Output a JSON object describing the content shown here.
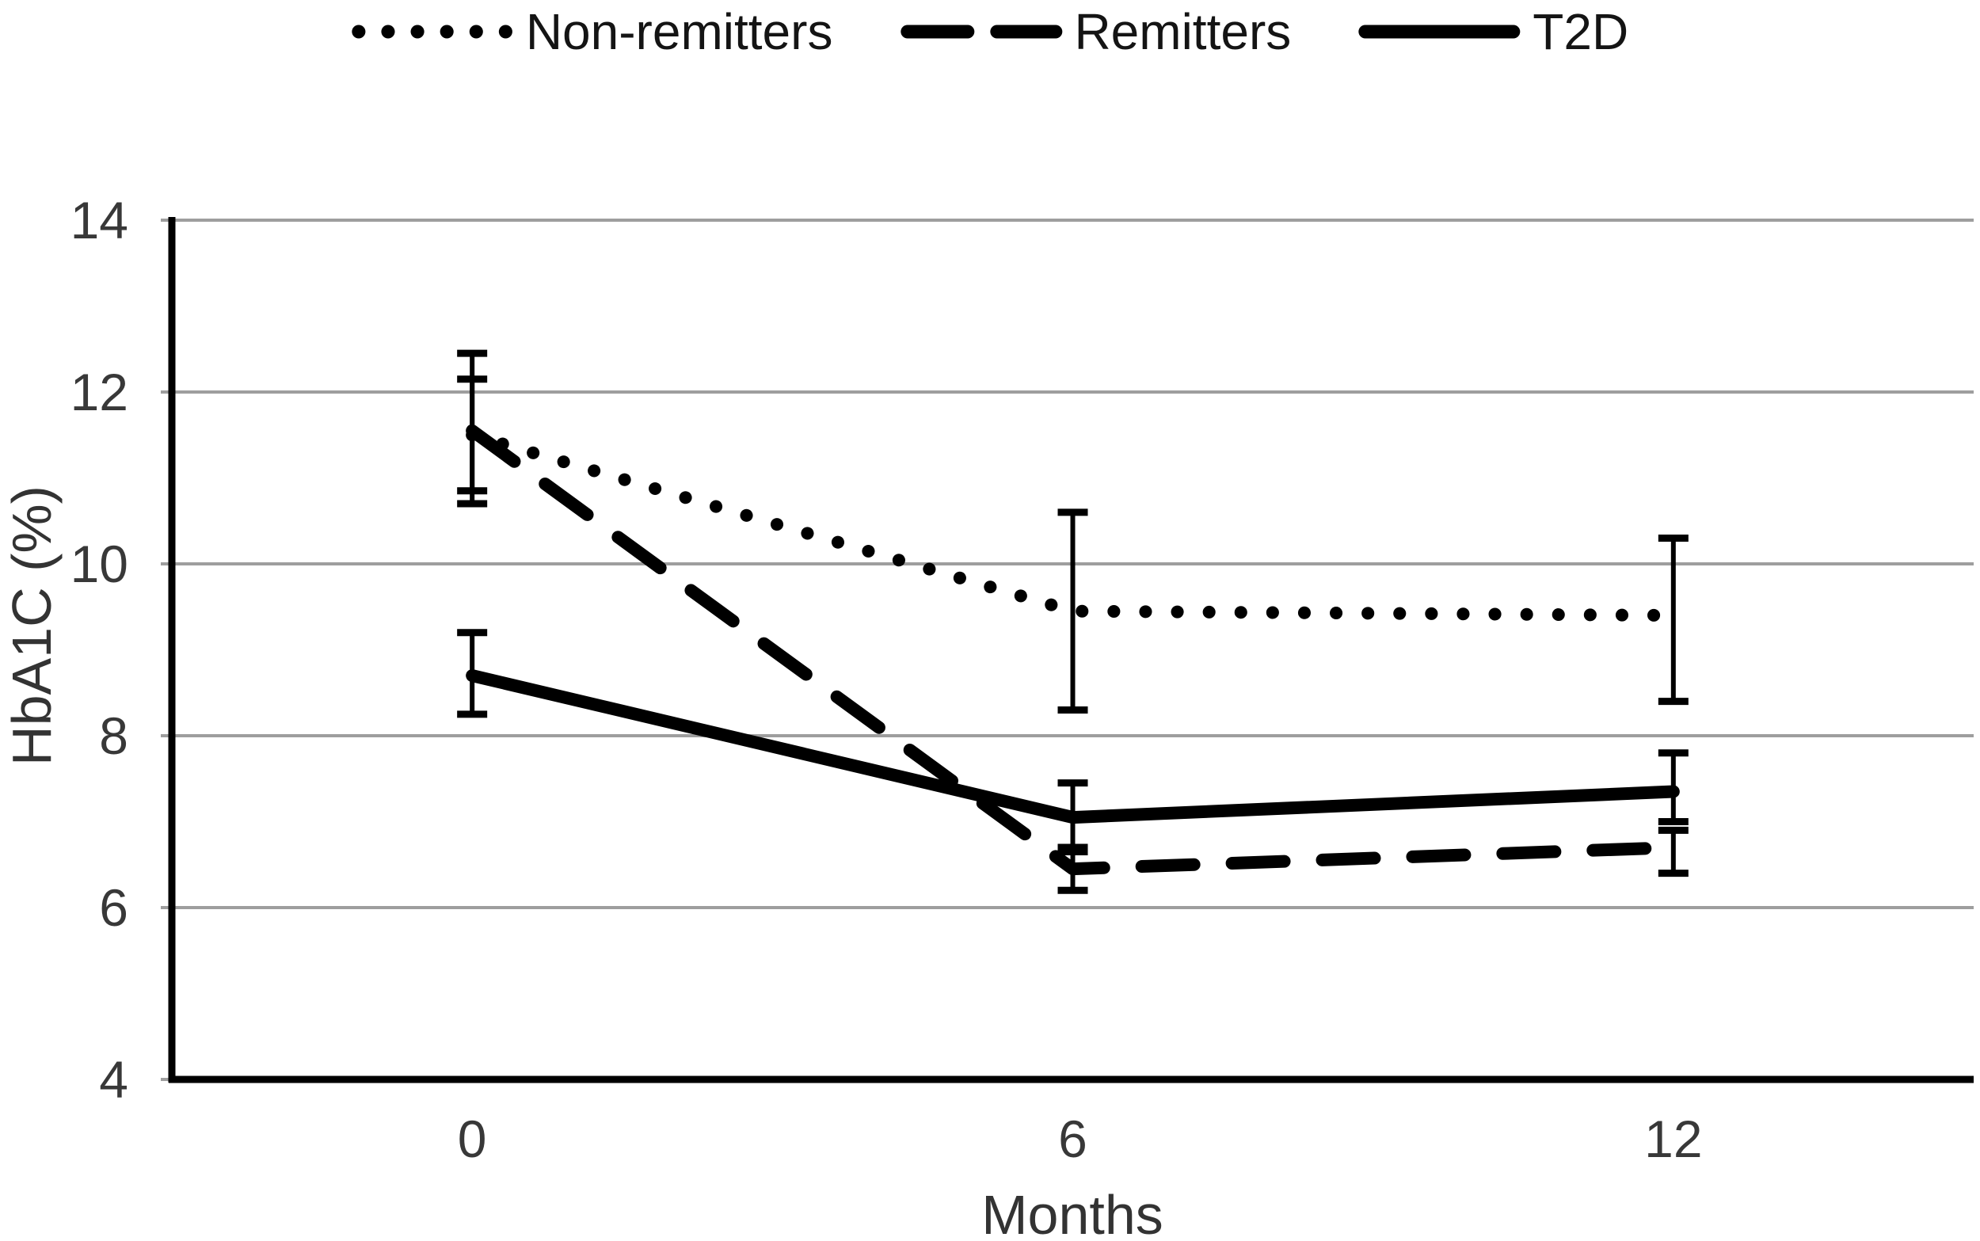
{
  "figure": {
    "background": "#ffffff",
    "ink_color": "#000000",
    "gridline_color": "#9e9e9e",
    "tick_text_color": "#383838"
  },
  "chart_data": {
    "type": "line",
    "title": "",
    "xlabel": "Months",
    "ylabel": "HbA1C (%)",
    "categories": [
      "0",
      "6",
      "12"
    ],
    "x_values_months": [
      0,
      6,
      12
    ],
    "ylim": [
      4,
      14
    ],
    "y_ticks": [
      4,
      6,
      8,
      10,
      12,
      14
    ],
    "grid": "horizontal-gridlines-only",
    "legend_position": "top-center",
    "error_bars": true,
    "series": [
      {
        "name": "Non-remitters",
        "line_style": "dotted",
        "color": "#000000",
        "values": [
          11.5,
          9.45,
          9.4
        ],
        "err_low": [
          10.85,
          8.3,
          8.4
        ],
        "err_high": [
          12.15,
          10.6,
          10.3
        ]
      },
      {
        "name": "Remitters",
        "line_style": "dashed",
        "color": "#000000",
        "values": [
          11.55,
          6.45,
          6.7
        ],
        "err_low": [
          10.7,
          6.2,
          6.4
        ],
        "err_high": [
          12.45,
          6.65,
          6.9
        ]
      },
      {
        "name": "T2D",
        "line_style": "solid",
        "color": "#000000",
        "values": [
          8.7,
          7.05,
          7.35
        ],
        "err_low": [
          8.25,
          6.7,
          7.0
        ],
        "err_high": [
          9.2,
          7.45,
          7.8
        ]
      }
    ]
  }
}
